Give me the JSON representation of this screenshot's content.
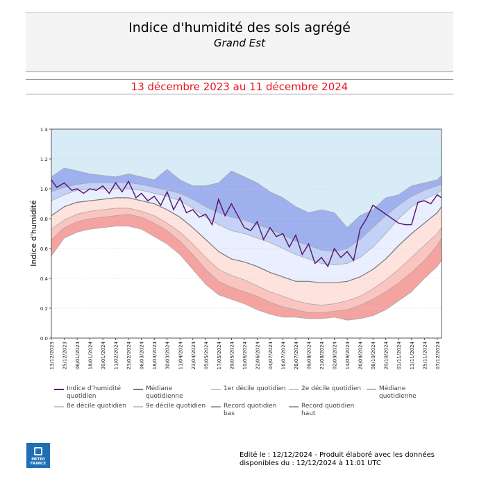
{
  "header": {
    "title": "Indice d'humidité des sols agrégé",
    "subtitle": "Grand Est",
    "period": "13 décembre 2023 au 11 décembre 2024"
  },
  "footer": {
    "line1": "Edité le : 12/12/2024 - Produit élaboré avec les données",
    "line2": "disponibles du : 12/12/2024 à 11:01 UTC",
    "logo_line1": "METEO",
    "logo_line2": "FRANCE"
  },
  "legend": {
    "items": [
      {
        "label": "Indice d'humidité quotidien",
        "color": "#5c1a6e"
      },
      {
        "label": "Médiane quotidienne",
        "color": "#7a7a7a"
      },
      {
        "label": "1er décile quotidien",
        "color": "#c8c8c8"
      },
      {
        "label": "2e décile quotidien",
        "color": "#c8c8c8"
      },
      {
        "label": "Médiane quotidienne",
        "color": "#b8b8b8"
      },
      {
        "label": "8e décile quotidien",
        "color": "#c8c8c8"
      },
      {
        "label": "9e décile quotidien",
        "color": "#c8c8c8"
      },
      {
        "label": "Record quotidien bas",
        "color": "#a0a0a0"
      },
      {
        "label": "Record quotidien haut",
        "color": "#a0a0a0"
      }
    ]
  },
  "chart_data": {
    "type": "area",
    "title": "",
    "xlabel": "",
    "ylabel": "Indice d'humidité",
    "ylim": [
      0.0,
      1.4
    ],
    "yticks": [
      "0.0",
      "0.2",
      "0.4",
      "0.6",
      "0.8",
      "1.0",
      "1.2",
      "1.4"
    ],
    "grid": true,
    "x_range": [
      "2023-12-13",
      "2024-12-11"
    ],
    "xticks": [
      "13/12/2023",
      "25/12/2023",
      "06/01/2024",
      "18/01/2024",
      "30/01/2024",
      "11/02/2024",
      "23/02/2024",
      "06/03/2024",
      "18/03/2024",
      "30/03/2024",
      "11/04/2024",
      "23/04/2024",
      "05/05/2024",
      "17/05/2024",
      "29/05/2024",
      "10/06/2024",
      "22/06/2024",
      "04/07/2024",
      "16/07/2024",
      "28/07/2024",
      "09/08/2024",
      "21/08/2024",
      "02/09/2024",
      "14/09/2024",
      "26/09/2024",
      "08/10/2024",
      "20/10/2024",
      "01/11/2024",
      "13/11/2024",
      "25/11/2024",
      "07/12/2024"
    ],
    "colors": {
      "record_bas_band": "#f5a3a0",
      "d1_band": "#fbc5bf",
      "d2_band": "#fde2de",
      "mid_low_band": "#e9efff",
      "mid_high_band": "#c4d2f8",
      "d9_band": "#9fb0ee",
      "record_haut_band": "#c6e4f4",
      "top_fill": "#d7ecf7",
      "daily": "#5c1a6e",
      "median": "#777777"
    },
    "series": [
      {
        "name": "Record quotidien bas",
        "x": [
          "2023-12-13",
          "2023-12-25",
          "2024-01-06",
          "2024-01-18",
          "2024-01-30",
          "2024-02-11",
          "2024-02-23",
          "2024-03-06",
          "2024-03-18",
          "2024-03-30",
          "2024-04-11",
          "2024-04-23",
          "2024-05-05",
          "2024-05-17",
          "2024-05-29",
          "2024-06-10",
          "2024-06-22",
          "2024-07-04",
          "2024-07-16",
          "2024-07-28",
          "2024-08-09",
          "2024-08-21",
          "2024-09-02",
          "2024-09-14",
          "2024-09-26",
          "2024-10-08",
          "2024-10-20",
          "2024-11-01",
          "2024-11-13",
          "2024-11-25",
          "2024-12-07",
          "2024-12-11"
        ],
        "values": [
          0.55,
          0.67,
          0.71,
          0.73,
          0.74,
          0.75,
          0.75,
          0.73,
          0.68,
          0.63,
          0.56,
          0.46,
          0.36,
          0.29,
          0.26,
          0.23,
          0.19,
          0.16,
          0.14,
          0.14,
          0.13,
          0.13,
          0.14,
          0.12,
          0.13,
          0.15,
          0.19,
          0.25,
          0.31,
          0.4,
          0.48,
          0.52
        ]
      },
      {
        "name": "1er décile quotidien",
        "x": [
          "2023-12-13",
          "2023-12-25",
          "2024-01-06",
          "2024-01-18",
          "2024-01-30",
          "2024-02-11",
          "2024-02-23",
          "2024-03-06",
          "2024-03-18",
          "2024-03-30",
          "2024-04-11",
          "2024-04-23",
          "2024-05-05",
          "2024-05-17",
          "2024-05-29",
          "2024-06-10",
          "2024-06-22",
          "2024-07-04",
          "2024-07-16",
          "2024-07-28",
          "2024-08-09",
          "2024-08-21",
          "2024-09-02",
          "2024-09-14",
          "2024-09-26",
          "2024-10-08",
          "2024-10-20",
          "2024-11-01",
          "2024-11-13",
          "2024-11-25",
          "2024-12-07",
          "2024-12-11"
        ],
        "values": [
          0.66,
          0.74,
          0.78,
          0.8,
          0.81,
          0.82,
          0.83,
          0.81,
          0.77,
          0.72,
          0.65,
          0.56,
          0.46,
          0.38,
          0.34,
          0.31,
          0.28,
          0.24,
          0.21,
          0.19,
          0.17,
          0.17,
          0.18,
          0.19,
          0.22,
          0.26,
          0.31,
          0.37,
          0.44,
          0.52,
          0.62,
          0.67
        ]
      },
      {
        "name": "2e décile quotidien",
        "x": [
          "2023-12-13",
          "2023-12-25",
          "2024-01-06",
          "2024-01-18",
          "2024-01-30",
          "2024-02-11",
          "2024-02-23",
          "2024-03-06",
          "2024-03-18",
          "2024-03-30",
          "2024-04-11",
          "2024-04-23",
          "2024-05-05",
          "2024-05-17",
          "2024-05-29",
          "2024-06-10",
          "2024-06-22",
          "2024-07-04",
          "2024-07-16",
          "2024-07-28",
          "2024-08-09",
          "2024-08-21",
          "2024-09-02",
          "2024-09-14",
          "2024-09-26",
          "2024-10-08",
          "2024-10-20",
          "2024-11-01",
          "2024-11-13",
          "2024-11-25",
          "2024-12-07",
          "2024-12-11"
        ],
        "values": [
          0.73,
          0.79,
          0.83,
          0.85,
          0.86,
          0.87,
          0.87,
          0.85,
          0.82,
          0.77,
          0.71,
          0.63,
          0.54,
          0.46,
          0.42,
          0.39,
          0.35,
          0.31,
          0.28,
          0.25,
          0.23,
          0.22,
          0.23,
          0.25,
          0.28,
          0.33,
          0.39,
          0.46,
          0.54,
          0.62,
          0.7,
          0.74
        ]
      },
      {
        "name": "Médiane quotidienne",
        "x": [
          "2023-12-13",
          "2023-12-25",
          "2024-01-06",
          "2024-01-18",
          "2024-01-30",
          "2024-02-11",
          "2024-02-23",
          "2024-03-06",
          "2024-03-18",
          "2024-03-30",
          "2024-04-11",
          "2024-04-23",
          "2024-05-05",
          "2024-05-17",
          "2024-05-29",
          "2024-06-10",
          "2024-06-22",
          "2024-07-04",
          "2024-07-16",
          "2024-07-28",
          "2024-08-09",
          "2024-08-21",
          "2024-09-02",
          "2024-09-14",
          "2024-09-26",
          "2024-10-08",
          "2024-10-20",
          "2024-11-01",
          "2024-11-13",
          "2024-11-25",
          "2024-12-07",
          "2024-12-11"
        ],
        "values": [
          0.82,
          0.88,
          0.91,
          0.92,
          0.93,
          0.94,
          0.94,
          0.92,
          0.9,
          0.86,
          0.81,
          0.74,
          0.66,
          0.58,
          0.53,
          0.51,
          0.48,
          0.44,
          0.41,
          0.38,
          0.38,
          0.37,
          0.37,
          0.38,
          0.41,
          0.46,
          0.53,
          0.62,
          0.7,
          0.77,
          0.84,
          0.88
        ]
      },
      {
        "name": "8e décile quotidien",
        "x": [
          "2023-12-13",
          "2023-12-25",
          "2024-01-06",
          "2024-01-18",
          "2024-01-30",
          "2024-02-11",
          "2024-02-23",
          "2024-03-06",
          "2024-03-18",
          "2024-03-30",
          "2024-04-11",
          "2024-04-23",
          "2024-05-05",
          "2024-05-17",
          "2024-05-29",
          "2024-06-10",
          "2024-06-22",
          "2024-07-04",
          "2024-07-16",
          "2024-07-28",
          "2024-08-09",
          "2024-08-21",
          "2024-09-02",
          "2024-09-14",
          "2024-09-26",
          "2024-10-08",
          "2024-10-20",
          "2024-11-01",
          "2024-11-13",
          "2024-11-25",
          "2024-12-07",
          "2024-12-11"
        ],
        "values": [
          0.92,
          0.96,
          0.99,
          1.0,
          1.0,
          1.0,
          1.0,
          0.99,
          0.97,
          0.95,
          0.92,
          0.87,
          0.81,
          0.76,
          0.72,
          0.7,
          0.67,
          0.64,
          0.6,
          0.56,
          0.53,
          0.5,
          0.49,
          0.5,
          0.54,
          0.61,
          0.7,
          0.8,
          0.88,
          0.93,
          0.97,
          0.99
        ]
      },
      {
        "name": "9e décile quotidien",
        "x": [
          "2023-12-13",
          "2023-12-25",
          "2024-01-06",
          "2024-01-18",
          "2024-01-30",
          "2024-02-11",
          "2024-02-23",
          "2024-03-06",
          "2024-03-18",
          "2024-03-30",
          "2024-04-11",
          "2024-04-23",
          "2024-05-05",
          "2024-05-17",
          "2024-05-29",
          "2024-06-10",
          "2024-06-22",
          "2024-07-04",
          "2024-07-16",
          "2024-07-28",
          "2024-08-09",
          "2024-08-21",
          "2024-09-02",
          "2024-09-14",
          "2024-09-26",
          "2024-10-08",
          "2024-10-20",
          "2024-11-01",
          "2024-11-13",
          "2024-11-25",
          "2024-12-07",
          "2024-12-11"
        ],
        "values": [
          0.98,
          1.01,
          1.03,
          1.04,
          1.04,
          1.04,
          1.04,
          1.03,
          1.01,
          0.99,
          0.97,
          0.93,
          0.88,
          0.84,
          0.81,
          0.79,
          0.76,
          0.73,
          0.69,
          0.65,
          0.62,
          0.59,
          0.58,
          0.6,
          0.66,
          0.74,
          0.82,
          0.89,
          0.95,
          0.99,
          1.02,
          1.03
        ]
      },
      {
        "name": "Record quotidien haut",
        "x": [
          "2023-12-13",
          "2023-12-25",
          "2024-01-06",
          "2024-01-18",
          "2024-01-30",
          "2024-02-11",
          "2024-02-23",
          "2024-03-06",
          "2024-03-18",
          "2024-03-30",
          "2024-04-11",
          "2024-04-23",
          "2024-05-05",
          "2024-05-17",
          "2024-05-29",
          "2024-06-10",
          "2024-06-22",
          "2024-07-04",
          "2024-07-16",
          "2024-07-28",
          "2024-08-09",
          "2024-08-21",
          "2024-09-02",
          "2024-09-14",
          "2024-09-26",
          "2024-10-08",
          "2024-10-20",
          "2024-11-01",
          "2024-11-13",
          "2024-11-25",
          "2024-12-07",
          "2024-12-11"
        ],
        "values": [
          1.08,
          1.14,
          1.12,
          1.1,
          1.09,
          1.08,
          1.1,
          1.08,
          1.06,
          1.13,
          1.06,
          1.02,
          1.02,
          1.04,
          1.12,
          1.08,
          1.04,
          0.98,
          0.94,
          0.88,
          0.84,
          0.86,
          0.84,
          0.74,
          0.82,
          0.86,
          0.94,
          0.96,
          1.02,
          1.04,
          1.06,
          1.09
        ]
      },
      {
        "name": "Indice d'humidité quotidien",
        "x": [
          "2023-12-13",
          "2023-12-18",
          "2023-12-25",
          "2024-01-01",
          "2024-01-06",
          "2024-01-12",
          "2024-01-18",
          "2024-01-24",
          "2024-01-30",
          "2024-02-05",
          "2024-02-11",
          "2024-02-17",
          "2024-02-23",
          "2024-03-01",
          "2024-03-06",
          "2024-03-12",
          "2024-03-18",
          "2024-03-24",
          "2024-03-30",
          "2024-04-05",
          "2024-04-11",
          "2024-04-17",
          "2024-04-23",
          "2024-04-29",
          "2024-05-05",
          "2024-05-11",
          "2024-05-17",
          "2024-05-23",
          "2024-05-29",
          "2024-06-04",
          "2024-06-10",
          "2024-06-16",
          "2024-06-22",
          "2024-06-28",
          "2024-07-04",
          "2024-07-10",
          "2024-07-16",
          "2024-07-22",
          "2024-07-28",
          "2024-08-03",
          "2024-08-09",
          "2024-08-15",
          "2024-08-21",
          "2024-08-27",
          "2024-09-02",
          "2024-09-08",
          "2024-09-14",
          "2024-09-20",
          "2024-09-26",
          "2024-10-02",
          "2024-10-08",
          "2024-10-14",
          "2024-10-20",
          "2024-10-26",
          "2024-11-01",
          "2024-11-07",
          "2024-11-13",
          "2024-11-19",
          "2024-11-25",
          "2024-12-01",
          "2024-12-07",
          "2024-12-11"
        ],
        "values": [
          1.06,
          1.01,
          1.04,
          0.99,
          1.0,
          0.97,
          1.0,
          0.99,
          1.02,
          0.97,
          1.04,
          0.98,
          1.05,
          0.94,
          0.97,
          0.92,
          0.95,
          0.89,
          0.98,
          0.86,
          0.94,
          0.84,
          0.86,
          0.81,
          0.83,
          0.76,
          0.93,
          0.82,
          0.9,
          0.82,
          0.74,
          0.72,
          0.78,
          0.66,
          0.74,
          0.68,
          0.7,
          0.61,
          0.69,
          0.56,
          0.63,
          0.5,
          0.54,
          0.48,
          0.6,
          0.54,
          0.58,
          0.52,
          0.73,
          0.8,
          0.89,
          0.86,
          0.83,
          0.8,
          0.77,
          0.76,
          0.76,
          0.91,
          0.92,
          0.9,
          0.96,
          0.94
        ]
      }
    ]
  }
}
